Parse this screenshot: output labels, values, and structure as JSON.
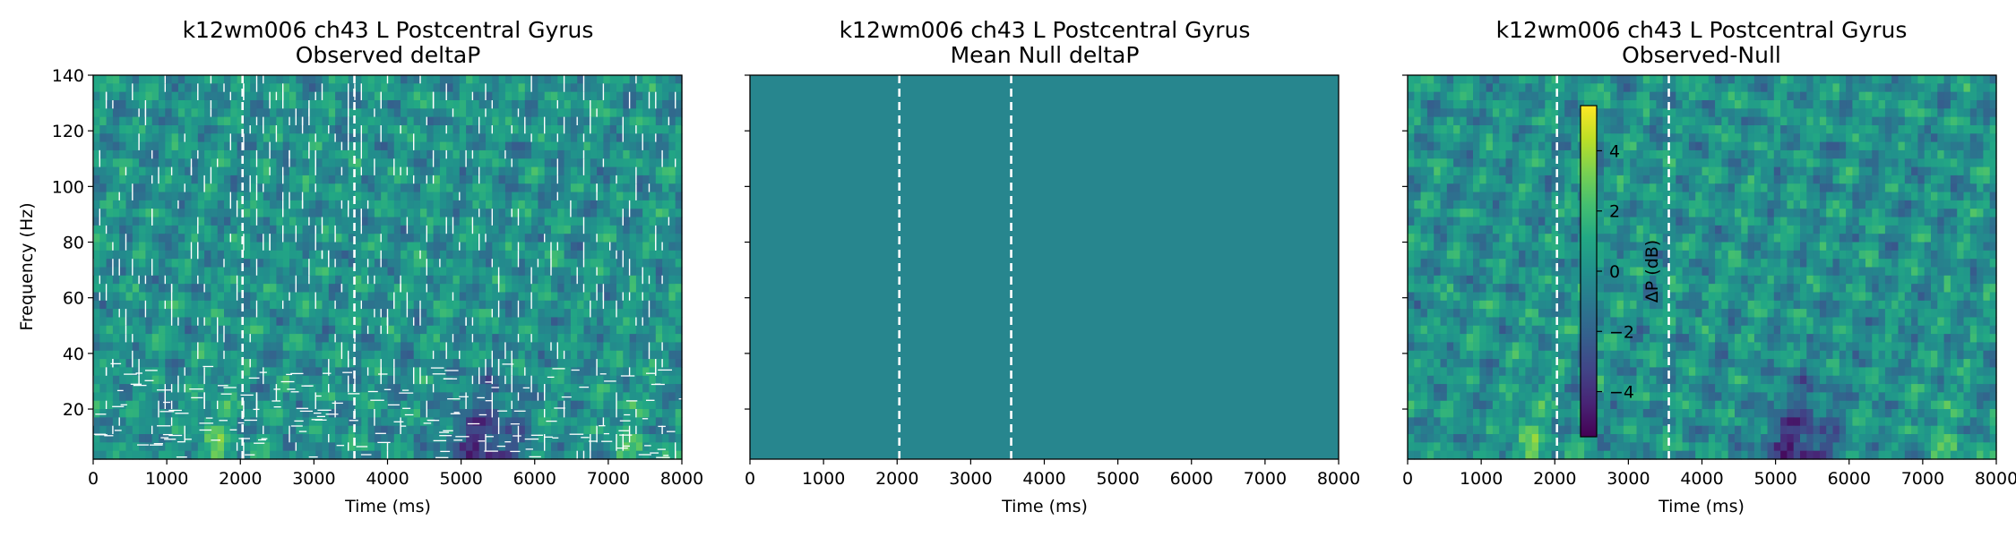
{
  "chart_data": [
    {
      "type": "heatmap",
      "title": "k12wm006 ch43 L Postcentral Gyrus",
      "subtitle": "Observed deltaP",
      "xlabel": "Time (ms)",
      "ylabel": "Frequency (Hz)",
      "xlim": [
        0,
        8000
      ],
      "ylim": [
        2,
        140
      ],
      "xticks": [
        0,
        1000,
        2000,
        3000,
        4000,
        5000,
        6000,
        7000,
        8000
      ],
      "yticks": [
        20,
        40,
        60,
        80,
        100,
        120,
        140
      ],
      "show_y_tick_labels": true,
      "event_lines_ms": [
        2030,
        3550
      ],
      "colormap": "viridis",
      "color_range": [
        -5.5,
        5.5
      ],
      "significance_contours": true
    },
    {
      "type": "heatmap",
      "title": "k12wm006 ch43 L Postcentral Gyrus",
      "subtitle": "Mean Null deltaP",
      "xlabel": "Time (ms)",
      "ylabel": "",
      "xlim": [
        0,
        8000
      ],
      "ylim": [
        2,
        140
      ],
      "xticks": [
        0,
        1000,
        2000,
        3000,
        4000,
        5000,
        6000,
        7000,
        8000
      ],
      "yticks": [
        20,
        40,
        60,
        80,
        100,
        120,
        140
      ],
      "show_y_tick_labels": false,
      "event_lines_ms": [
        2030,
        3550
      ],
      "colormap": "viridis",
      "color_range": [
        -5.5,
        5.5
      ],
      "significance_contours": false
    },
    {
      "type": "heatmap",
      "title": "k12wm006 ch43 L Postcentral Gyrus",
      "subtitle": "Observed-Null",
      "xlabel": "Time (ms)",
      "ylabel": "",
      "xlim": [
        0,
        8000
      ],
      "ylim": [
        2,
        140
      ],
      "xticks": [
        0,
        1000,
        2000,
        3000,
        4000,
        5000,
        6000,
        7000,
        8000
      ],
      "yticks": [
        20,
        40,
        60,
        80,
        100,
        120,
        140
      ],
      "show_y_tick_labels": false,
      "event_lines_ms": [
        2030,
        3550
      ],
      "colormap": "viridis",
      "color_range": [
        -5.5,
        5.5
      ],
      "significance_contours": false,
      "colorbar": {
        "label": "ΔP (dB)",
        "ticks": [
          4,
          2,
          0,
          -2,
          -4
        ],
        "tick_labels": [
          "4",
          "2",
          "0",
          "−2",
          "−4"
        ],
        "range": [
          -5.5,
          5.5
        ]
      }
    }
  ],
  "colors": {
    "event_line": "#ffffff",
    "axis": "#000000",
    "null_fill": "#27868e"
  }
}
